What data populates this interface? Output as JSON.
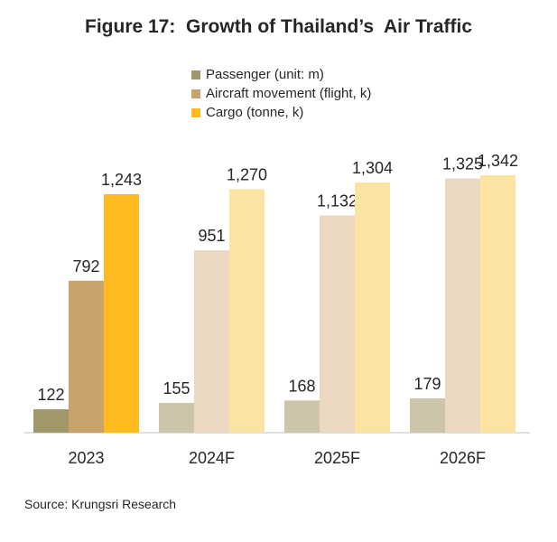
{
  "title": "Figure 17:  Growth of Thailand’s  Air Traffic",
  "source": "Source: Krungsri Research",
  "chart_data": {
    "type": "bar",
    "categories": [
      "2023",
      "2024F",
      "2025F",
      "2026F"
    ],
    "series": [
      {
        "name": "Passenger (unit: m)",
        "values": [
          122,
          155,
          168,
          179
        ],
        "color": "#a09868",
        "forecast_color": "#cdc5aa"
      },
      {
        "name": "Aircraft movement (flight, k)",
        "values": [
          792,
          951,
          1132,
          1325
        ],
        "color": "#c9a46a",
        "forecast_color": "#ead9c0"
      },
      {
        "name": "Cargo (tonne, k)",
        "values": [
          1243,
          1270,
          1304,
          1342
        ],
        "color": "#fdbb20",
        "forecast_color": "#fde3a2"
      }
    ],
    "data_labels": [
      [
        "122",
        "155",
        "168",
        "179"
      ],
      [
        "792",
        "951",
        "1,132",
        "1,325"
      ],
      [
        "1,243",
        "1,270",
        "1,304",
        "1,342"
      ]
    ],
    "ylim": [
      0,
      1600
    ],
    "grid": false,
    "legend_position": "top-center",
    "forecast_styling": "lighter tint for forecast years"
  }
}
